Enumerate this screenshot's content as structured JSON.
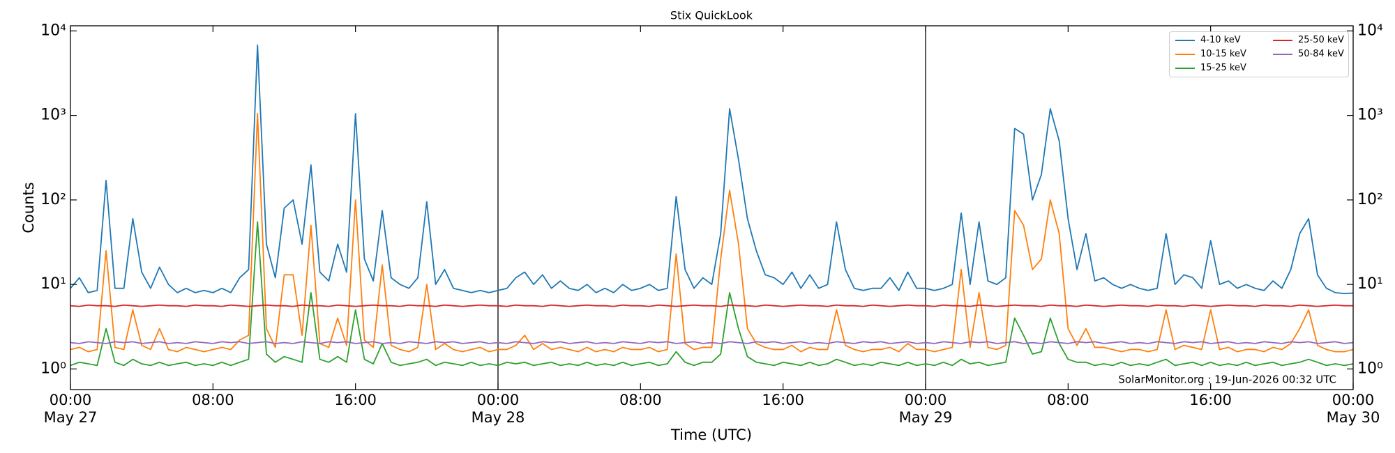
{
  "chart_data": {
    "type": "line",
    "title": "Stix QuickLook",
    "xlabel": "Time (UTC)",
    "ylabel": "Counts",
    "annotation": "SolarMonitor.org : 19-Jun-2026 00:32 UTC",
    "log_y": true,
    "legend": "upper right",
    "xlim": [
      "May 27 00:00",
      "May 30 00:00"
    ],
    "xticks": [
      {
        "value": "May 27 00:00",
        "label": "00:00\nMay 27"
      },
      {
        "value": "May 27 08:00",
        "label": "08:00"
      },
      {
        "value": "May 27 16:00",
        "label": "16:00"
      },
      {
        "value": "May 28 00:00",
        "label": "00:00\nMay 28"
      },
      {
        "value": "May 28 08:00",
        "label": "08:00"
      },
      {
        "value": "May 28 16:00",
        "label": "16:00"
      },
      {
        "value": "May 29 00:00",
        "label": "00:00\nMay 29"
      },
      {
        "value": "May 29 08:00",
        "label": "08:00"
      },
      {
        "value": "May 29 16:00",
        "label": "16:00"
      },
      {
        "value": "May 30 00:00",
        "label": "00:00\nMay 30"
      }
    ],
    "vlines": [
      "May 28 00:00",
      "May 29 00:00"
    ],
    "ylim": [
      0.57,
      11500
    ],
    "yticks": [
      {
        "value": 1,
        "label": "10⁰"
      },
      {
        "value": 10,
        "label": "10¹"
      },
      {
        "value": 100,
        "label": "10²"
      },
      {
        "value": 1000,
        "label": "10³"
      },
      {
        "value": 10000,
        "label": "10⁴"
      }
    ],
    "x": [
      "May 27 00:00",
      "May 27 00:30",
      "May 27 01:00",
      "May 27 01:30",
      "May 27 02:00",
      "May 27 02:30",
      "May 27 03:00",
      "May 27 03:30",
      "May 27 04:00",
      "May 27 04:30",
      "May 27 05:00",
      "May 27 05:30",
      "May 27 06:00",
      "May 27 06:30",
      "May 27 07:00",
      "May 27 07:30",
      "May 27 08:00",
      "May 27 08:30",
      "May 27 09:00",
      "May 27 09:30",
      "May 27 10:00",
      "May 27 10:30",
      "May 27 11:00",
      "May 27 11:30",
      "May 27 12:00",
      "May 27 12:30",
      "May 27 13:00",
      "May 27 13:30",
      "May 27 14:00",
      "May 27 14:30",
      "May 27 15:00",
      "May 27 15:30",
      "May 27 16:00",
      "May 27 16:30",
      "May 27 17:00",
      "May 27 17:30",
      "May 27 18:00",
      "May 27 18:30",
      "May 27 19:00",
      "May 27 19:30",
      "May 27 20:00",
      "May 27 20:30",
      "May 27 21:00",
      "May 27 21:30",
      "May 27 22:00",
      "May 27 22:30",
      "May 27 23:00",
      "May 27 23:30",
      "May 28 00:00",
      "May 28 00:30",
      "May 28 01:00",
      "May 28 01:30",
      "May 28 02:00",
      "May 28 02:30",
      "May 28 03:00",
      "May 28 03:30",
      "May 28 04:00",
      "May 28 04:30",
      "May 28 05:00",
      "May 28 05:30",
      "May 28 06:00",
      "May 28 06:30",
      "May 28 07:00",
      "May 28 07:30",
      "May 28 08:00",
      "May 28 08:30",
      "May 28 09:00",
      "May 28 09:30",
      "May 28 10:00",
      "May 28 10:30",
      "May 28 11:00",
      "May 28 11:30",
      "May 28 12:00",
      "May 28 12:30",
      "May 28 13:00",
      "May 28 13:30",
      "May 28 14:00",
      "May 28 14:30",
      "May 28 15:00",
      "May 28 15:30",
      "May 28 16:00",
      "May 28 16:30",
      "May 28 17:00",
      "May 28 17:30",
      "May 28 18:00",
      "May 28 18:30",
      "May 28 19:00",
      "May 28 19:30",
      "May 28 20:00",
      "May 28 20:30",
      "May 28 21:00",
      "May 28 21:30",
      "May 28 22:00",
      "May 28 22:30",
      "May 28 23:00",
      "May 28 23:30",
      "May 29 00:00",
      "May 29 00:30",
      "May 29 01:00",
      "May 29 01:30",
      "May 29 02:00",
      "May 29 02:30",
      "May 29 03:00",
      "May 29 03:30",
      "May 29 04:00",
      "May 29 04:30",
      "May 29 05:00",
      "May 29 05:30",
      "May 29 06:00",
      "May 29 06:30",
      "May 29 07:00",
      "May 29 07:30",
      "May 29 08:00",
      "May 29 08:30",
      "May 29 09:00",
      "May 29 09:30",
      "May 29 10:00",
      "May 29 10:30",
      "May 29 11:00",
      "May 29 11:30",
      "May 29 12:00",
      "May 29 12:30",
      "May 29 13:00",
      "May 29 13:30",
      "May 29 14:00",
      "May 29 14:30",
      "May 29 15:00",
      "May 29 15:30",
      "May 29 16:00",
      "May 29 16:30",
      "May 29 17:00",
      "May 29 17:30",
      "May 29 18:00",
      "May 29 18:30",
      "May 29 19:00",
      "May 29 19:30",
      "May 29 20:00",
      "May 29 20:30",
      "May 29 21:00",
      "May 29 21:30",
      "May 29 22:00",
      "May 29 22:30",
      "May 29 23:00",
      "May 29 23:30",
      "May 30 00:00"
    ],
    "series": [
      {
        "name": "4-10 keV",
        "color": "#1f77b4",
        "values": [
          9,
          12,
          8,
          8.5,
          170,
          9,
          9,
          60,
          14,
          9,
          16,
          10,
          8,
          9,
          8,
          8.5,
          8,
          9,
          8,
          12,
          15,
          6800,
          30,
          12,
          80,
          100,
          30,
          260,
          14,
          11,
          30,
          14,
          1050,
          20,
          11,
          75,
          12,
          10,
          9,
          12,
          95,
          10,
          15,
          9,
          8.5,
          8,
          8.5,
          8,
          8.5,
          9,
          12,
          14,
          10,
          13,
          9,
          11,
          9,
          8.5,
          10,
          8,
          9,
          8,
          10,
          8.5,
          9,
          10,
          8.5,
          9,
          110,
          15,
          9,
          12,
          10,
          40,
          1200,
          300,
          60,
          25,
          13,
          12,
          10,
          14,
          9,
          13,
          9,
          10,
          55,
          15,
          9,
          8.5,
          9,
          9,
          12,
          8.5,
          14,
          9,
          9,
          8.5,
          9,
          10,
          70,
          10,
          55,
          11,
          10,
          12,
          700,
          600,
          100,
          200,
          1200,
          500,
          60,
          15,
          40,
          11,
          12,
          10,
          9,
          10,
          9,
          8.5,
          9,
          40,
          10,
          13,
          12,
          9,
          33,
          10,
          11,
          9,
          10,
          9,
          8.5,
          11,
          9,
          15,
          40,
          60,
          13,
          9,
          8,
          7.8,
          7.9
        ]
      },
      {
        "name": "10-15 keV",
        "color": "#ff7f0e",
        "values": [
          1.7,
          1.8,
          1.6,
          1.7,
          25,
          1.8,
          1.7,
          5,
          1.9,
          1.7,
          3,
          1.7,
          1.6,
          1.8,
          1.7,
          1.6,
          1.7,
          1.8,
          1.7,
          2.2,
          2.5,
          1050,
          3,
          1.8,
          13,
          13,
          2.5,
          50,
          2,
          1.8,
          4,
          1.9,
          100,
          2.2,
          1.8,
          17,
          1.9,
          1.7,
          1.6,
          1.8,
          10,
          1.7,
          2,
          1.7,
          1.6,
          1.7,
          1.8,
          1.6,
          1.7,
          1.7,
          1.9,
          2.5,
          1.7,
          2,
          1.7,
          1.8,
          1.7,
          1.6,
          1.8,
          1.6,
          1.7,
          1.6,
          1.8,
          1.7,
          1.7,
          1.8,
          1.6,
          1.7,
          23,
          2,
          1.7,
          1.8,
          1.8,
          20,
          130,
          30,
          3,
          2,
          1.8,
          1.7,
          1.7,
          1.9,
          1.6,
          1.8,
          1.7,
          1.7,
          5,
          1.9,
          1.7,
          1.6,
          1.7,
          1.7,
          1.8,
          1.6,
          2,
          1.7,
          1.7,
          1.6,
          1.7,
          1.8,
          15,
          1.8,
          8,
          1.8,
          1.7,
          1.9,
          75,
          50,
          15,
          20,
          100,
          40,
          3,
          1.9,
          3,
          1.8,
          1.8,
          1.7,
          1.6,
          1.7,
          1.7,
          1.6,
          1.7,
          5,
          1.7,
          1.9,
          1.8,
          1.7,
          5,
          1.7,
          1.8,
          1.6,
          1.7,
          1.7,
          1.6,
          1.8,
          1.7,
          2,
          3,
          5,
          1.9,
          1.7,
          1.6,
          1.6,
          1.7
        ]
      },
      {
        "name": "15-25 keV",
        "color": "#2ca02c",
        "values": [
          1.1,
          1.2,
          1.15,
          1.1,
          3,
          1.2,
          1.1,
          1.3,
          1.15,
          1.1,
          1.2,
          1.1,
          1.15,
          1.2,
          1.1,
          1.15,
          1.1,
          1.2,
          1.1,
          1.2,
          1.3,
          55,
          1.5,
          1.2,
          1.4,
          1.3,
          1.2,
          8,
          1.3,
          1.2,
          1.4,
          1.2,
          5,
          1.3,
          1.15,
          2,
          1.2,
          1.1,
          1.15,
          1.2,
          1.3,
          1.1,
          1.2,
          1.15,
          1.1,
          1.2,
          1.1,
          1.15,
          1.1,
          1.2,
          1.15,
          1.2,
          1.1,
          1.15,
          1.2,
          1.1,
          1.15,
          1.1,
          1.2,
          1.1,
          1.15,
          1.1,
          1.2,
          1.1,
          1.15,
          1.2,
          1.1,
          1.15,
          1.6,
          1.2,
          1.1,
          1.2,
          1.2,
          1.5,
          8,
          3,
          1.4,
          1.2,
          1.15,
          1.1,
          1.2,
          1.15,
          1.1,
          1.2,
          1.1,
          1.15,
          1.3,
          1.2,
          1.1,
          1.15,
          1.1,
          1.2,
          1.15,
          1.1,
          1.2,
          1.1,
          1.15,
          1.1,
          1.2,
          1.1,
          1.3,
          1.15,
          1.2,
          1.1,
          1.15,
          1.2,
          4,
          2.5,
          1.5,
          1.6,
          4,
          2,
          1.3,
          1.2,
          1.2,
          1.1,
          1.15,
          1.1,
          1.2,
          1.1,
          1.15,
          1.1,
          1.2,
          1.3,
          1.1,
          1.15,
          1.2,
          1.1,
          1.2,
          1.1,
          1.15,
          1.1,
          1.2,
          1.1,
          1.15,
          1.2,
          1.1,
          1.15,
          1.2,
          1.3,
          1.2,
          1.1,
          1.15,
          1.1,
          1.15
        ]
      },
      {
        "name": "25-50 keV",
        "color": "#d62728",
        "values": [
          5.6,
          5.5,
          5.7,
          5.6,
          5.6,
          5.5,
          5.7,
          5.6,
          5.5,
          5.6,
          5.7,
          5.6,
          5.6,
          5.5,
          5.7,
          5.6,
          5.6,
          5.5,
          5.7,
          5.6,
          5.5,
          5.6,
          5.7,
          5.6,
          5.6,
          5.5,
          5.7,
          5.6,
          5.6,
          5.5,
          5.7,
          5.6,
          5.5,
          5.6,
          5.7,
          5.6,
          5.6,
          5.5,
          5.7,
          5.6,
          5.6,
          5.5,
          5.7,
          5.6,
          5.5,
          5.6,
          5.7,
          5.6,
          5.6,
          5.5,
          5.7,
          5.6,
          5.6,
          5.5,
          5.7,
          5.6,
          5.5,
          5.6,
          5.7,
          5.6,
          5.6,
          5.5,
          5.7,
          5.6,
          5.6,
          5.5,
          5.7,
          5.6,
          5.5,
          5.6,
          5.7,
          5.6,
          5.6,
          5.5,
          5.7,
          5.6,
          5.6,
          5.5,
          5.7,
          5.6,
          5.5,
          5.6,
          5.7,
          5.6,
          5.6,
          5.5,
          5.7,
          5.6,
          5.6,
          5.5,
          5.7,
          5.6,
          5.5,
          5.6,
          5.7,
          5.6,
          5.6,
          5.5,
          5.7,
          5.6,
          5.6,
          5.5,
          5.7,
          5.6,
          5.5,
          5.6,
          5.7,
          5.6,
          5.6,
          5.5,
          5.7,
          5.6,
          5.6,
          5.5,
          5.7,
          5.6,
          5.5,
          5.6,
          5.7,
          5.6,
          5.6,
          5.5,
          5.7,
          5.6,
          5.6,
          5.5,
          5.7,
          5.6,
          5.5,
          5.6,
          5.7,
          5.6,
          5.6,
          5.5,
          5.7,
          5.6,
          5.6,
          5.5,
          5.7,
          5.6,
          5.5,
          5.6,
          5.7,
          5.6,
          5.6
        ]
      },
      {
        "name": "50-84 keV",
        "color": "#9467bd",
        "values": [
          2.05,
          2.0,
          2.1,
          2.05,
          2.0,
          2.1,
          2.05,
          2.1,
          2.0,
          2.05,
          2.1,
          2.0,
          2.05,
          2.0,
          2.1,
          2.05,
          2.0,
          2.1,
          2.05,
          2.1,
          2.0,
          2.05,
          2.1,
          2.0,
          2.05,
          2.0,
          2.1,
          2.05,
          2.0,
          2.1,
          2.05,
          2.1,
          2.0,
          2.05,
          2.1,
          2.0,
          2.05,
          2.0,
          2.1,
          2.05,
          2.0,
          2.1,
          2.05,
          2.1,
          2.0,
          2.05,
          2.1,
          2.0,
          2.05,
          2.0,
          2.1,
          2.05,
          2.0,
          2.1,
          2.05,
          2.1,
          2.0,
          2.05,
          2.1,
          2.0,
          2.05,
          2.0,
          2.1,
          2.05,
          2.0,
          2.1,
          2.05,
          2.1,
          2.0,
          2.05,
          2.1,
          2.0,
          2.05,
          2.0,
          2.1,
          2.05,
          2.0,
          2.1,
          2.05,
          2.1,
          2.0,
          2.05,
          2.1,
          2.0,
          2.05,
          2.0,
          2.1,
          2.05,
          2.0,
          2.1,
          2.05,
          2.1,
          2.0,
          2.05,
          2.1,
          2.0,
          2.05,
          2.0,
          2.1,
          2.05,
          2.0,
          2.1,
          2.05,
          2.1,
          2.0,
          2.05,
          2.1,
          2.0,
          2.05,
          2.0,
          2.1,
          2.05,
          2.0,
          2.1,
          2.05,
          2.1,
          2.0,
          2.05,
          2.1,
          2.0,
          2.05,
          2.0,
          2.1,
          2.05,
          2.0,
          2.1,
          2.05,
          2.1,
          2.0,
          2.05,
          2.1,
          2.0,
          2.05,
          2.0,
          2.1,
          2.05,
          2.0,
          2.1,
          2.05,
          2.1,
          2.0,
          2.05,
          2.1,
          2.0,
          2.05
        ]
      }
    ]
  }
}
